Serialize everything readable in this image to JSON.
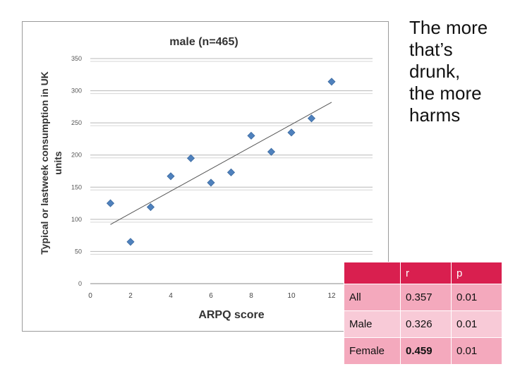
{
  "slide_text": [
    "The more",
    "that’s",
    "drunk,",
    "the  more",
    "harms"
  ],
  "chart_data": {
    "type": "scatter",
    "title": "male (n=465)",
    "xlabel": "ARPQ score",
    "ylabel": "Typical or lastweek consumption in UK units",
    "xlim": [
      0,
      12
    ],
    "ylim": [
      0,
      350
    ],
    "x_ticks": [
      "0",
      "2",
      "4",
      "6",
      "8",
      "10",
      "12"
    ],
    "y_ticks": [
      "0",
      "50",
      "100",
      "150",
      "200",
      "250",
      "300",
      "350"
    ],
    "grid": true,
    "point_color": "#4f81bd",
    "x": [
      1,
      2,
      3,
      4,
      5,
      6,
      7,
      8,
      9,
      10,
      11,
      12
    ],
    "y": [
      125,
      65,
      119,
      167,
      195,
      157,
      173,
      230,
      205,
      235,
      257,
      314
    ],
    "trendline": {
      "x": [
        1,
        12
      ],
      "y": [
        92,
        282
      ]
    }
  },
  "stats_table": {
    "header": [
      "",
      "r",
      "p"
    ],
    "rows": [
      {
        "label": "All",
        "r": "0.357",
        "p": "0.01"
      },
      {
        "label": "Male",
        "r": "0.326",
        "p": "0.01"
      },
      {
        "label": "Female",
        "r": "0.459",
        "p": "0.01"
      }
    ],
    "header_color": "#d91f4f",
    "row_color": "#f4a9bd",
    "alt_row_color": "#f8cad7"
  }
}
